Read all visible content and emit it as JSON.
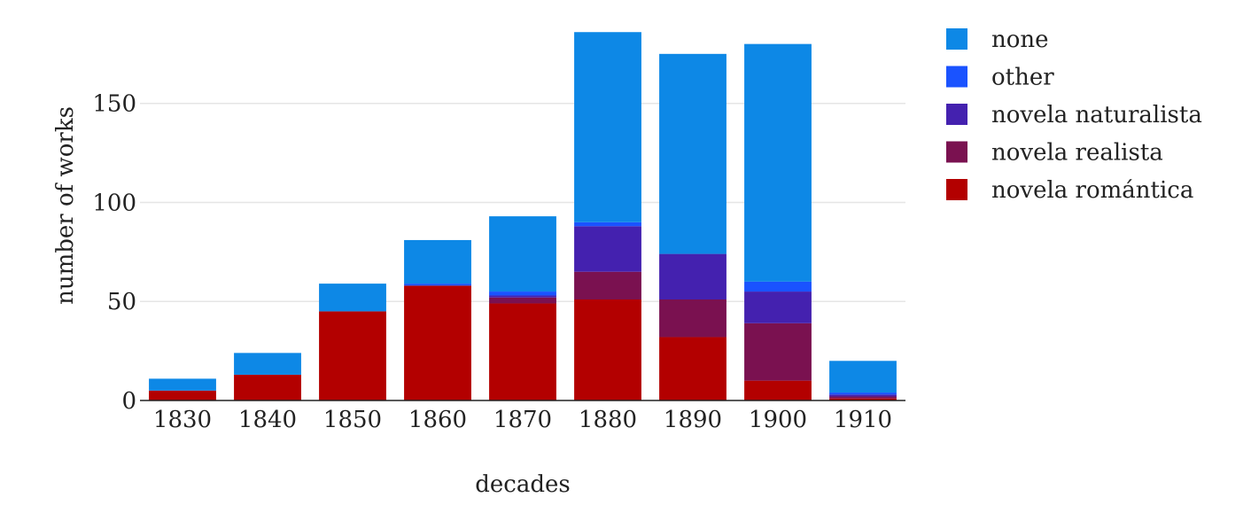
{
  "chart_data": {
    "type": "bar",
    "stacked": true,
    "categories": [
      "1830",
      "1840",
      "1850",
      "1860",
      "1870",
      "1880",
      "1890",
      "1900",
      "1910"
    ],
    "series": [
      {
        "name": "novela romántica",
        "color": "#b30000",
        "values": [
          5,
          13,
          45,
          58,
          49,
          51,
          32,
          10,
          1
        ]
      },
      {
        "name": "novela realista",
        "color": "#7a1150",
        "values": [
          0,
          0,
          0,
          0,
          3,
          14,
          19,
          29,
          1
        ]
      },
      {
        "name": "novela naturalista",
        "color": "#4421af",
        "values": [
          0,
          0,
          0,
          0,
          1,
          23,
          23,
          16,
          1
        ]
      },
      {
        "name": "other",
        "color": "#1a53ff",
        "values": [
          0,
          0,
          0,
          1,
          2,
          2,
          0,
          5,
          1
        ]
      },
      {
        "name": "none",
        "color": "#0d88e6",
        "values": [
          6,
          11,
          14,
          22,
          38,
          96,
          101,
          120,
          16
        ]
      }
    ],
    "legend_order": [
      "none",
      "other",
      "novela naturalista",
      "novela realista",
      "novela romántica"
    ],
    "xlabel": "decades",
    "ylabel": "number of works",
    "ylim": [
      0,
      187
    ],
    "yticks": [
      0,
      50,
      100,
      150
    ],
    "grid": true,
    "legend_position": "right"
  }
}
